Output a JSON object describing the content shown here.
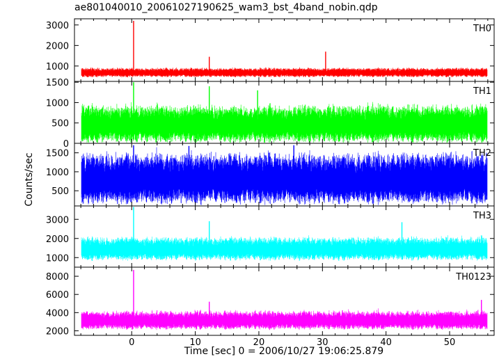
{
  "title": "ae801040010_20061027190625_wam3_bst_4band_nobin.qdp",
  "ylabel": "Counts/sec",
  "xlabel": "Time [sec] 0 = 2006/10/27 19:06:25.879",
  "chart_data": {
    "type": "line",
    "xlim": [
      -9,
      57
    ],
    "x_ticks": [
      0,
      10,
      20,
      30,
      40,
      50
    ],
    "x_minor_step": 2,
    "data_range": [
      -7.9,
      55.9
    ],
    "panels": [
      {
        "name": "TH0",
        "color": "#ff0000",
        "ylim": [
          250,
          3300
        ],
        "y_ticks": [
          1000,
          2000,
          3000
        ],
        "tick_labels": [
          "1000",
          "2000",
          "3000"
        ],
        "baseline": 680,
        "noise_halfwidth": 210,
        "spikes": [
          [
            0.3,
            3200
          ],
          [
            30.5,
            1700
          ],
          [
            12.2,
            1450
          ]
        ]
      },
      {
        "name": "TH1",
        "color": "#00ff00",
        "ylim": [
          0,
          1520
        ],
        "y_ticks": [
          0,
          500,
          1000,
          1500
        ],
        "tick_labels": [
          "0",
          "500",
          "1000",
          "1500"
        ],
        "baseline": 470,
        "noise_halfwidth": 430,
        "spikes": [
          [
            0.3,
            1500
          ],
          [
            12.2,
            1400
          ],
          [
            19.8,
            1300
          ]
        ]
      },
      {
        "name": "TH2",
        "color": "#0000ff",
        "ylim": [
          100,
          1750
        ],
        "y_ticks": [
          500,
          1000,
          1500
        ],
        "tick_labels": [
          "500",
          "1000",
          "1500"
        ],
        "baseline": 810,
        "noise_halfwidth": 620,
        "spikes": [
          [
            0.3,
            1700
          ],
          [
            9.0,
            1680
          ],
          [
            25.5,
            1700
          ]
        ]
      },
      {
        "name": "TH3",
        "color": "#00ffff",
        "ylim": [
          500,
          3700
        ],
        "y_ticks": [
          1000,
          2000,
          3000
        ],
        "tick_labels": [
          "1000",
          "2000",
          "3000"
        ],
        "baseline": 1450,
        "noise_halfwidth": 560,
        "spikes": [
          [
            0.3,
            3650
          ],
          [
            12.2,
            2900
          ],
          [
            42.5,
            2850
          ]
        ]
      },
      {
        "name": "TH0123",
        "color": "#ff00ff",
        "ylim": [
          1500,
          9000
        ],
        "y_ticks": [
          2000,
          4000,
          6000,
          8000
        ],
        "tick_labels": [
          "2000",
          "4000",
          "6000",
          "8000"
        ],
        "baseline": 3150,
        "noise_halfwidth": 950,
        "spikes": [
          [
            0.3,
            8700
          ],
          [
            55.0,
            5400
          ],
          [
            12.2,
            5200
          ]
        ]
      }
    ]
  }
}
